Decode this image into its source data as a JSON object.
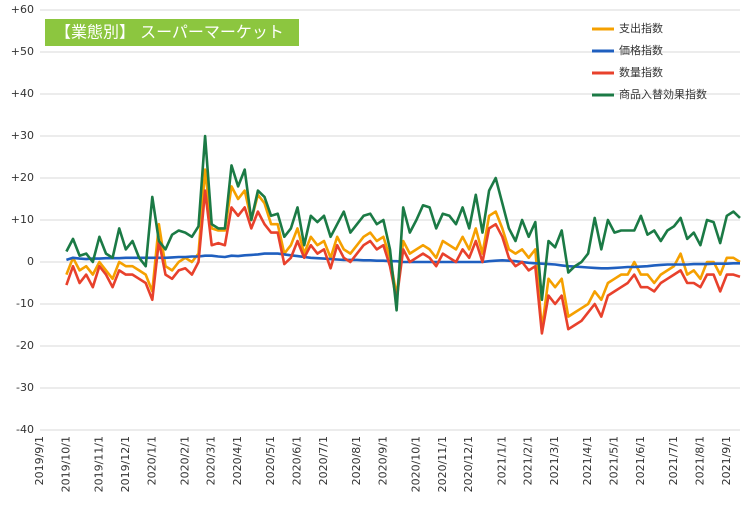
{
  "chart_data": {
    "type": "line",
    "title": "【業態別】 スーパーマーケット",
    "categories": [
      "2019/9/1",
      null,
      null,
      null,
      "2019/10/1",
      null,
      null,
      null,
      null,
      "2019/11/1",
      null,
      null,
      null,
      "2019/12/1",
      null,
      null,
      null,
      "2020/1/1",
      null,
      null,
      null,
      null,
      "2020/2/1",
      null,
      null,
      null,
      "2020/3/1",
      null,
      null,
      null,
      "2020/4/1",
      null,
      null,
      null,
      null,
      "2020/5/1",
      null,
      null,
      null,
      "2020/6/1",
      null,
      null,
      null,
      "2020/7/1",
      null,
      null,
      null,
      null,
      "2020/8/1",
      null,
      null,
      null,
      "2020/9/1",
      null,
      null,
      null,
      null,
      "2020/10/1",
      null,
      null,
      null,
      "2020/11/1",
      null,
      null,
      null,
      "2020/12/1",
      null,
      null,
      null,
      null,
      "2021/1/1",
      null,
      null,
      null,
      "2021/2/1",
      null,
      null,
      null,
      "2021/3/1",
      null,
      null,
      null,
      null,
      "2021/4/1",
      null,
      null,
      null,
      "2021/5/1",
      null,
      null,
      null,
      "2021/6/1",
      null,
      null,
      null,
      null,
      "2021/7/1",
      null,
      null,
      null,
      "2021/8/1",
      null,
      null,
      null,
      "2021/9/1",
      null,
      null
    ],
    "series": [
      {
        "name": "支出指数",
        "color": "#f5a000",
        "values": [
          null,
          null,
          null,
          null,
          -3,
          1,
          -2,
          -1,
          -3,
          0,
          -2,
          -4,
          0,
          -1,
          -1,
          -2,
          -3,
          -7,
          9,
          -1,
          -2,
          0,
          1,
          0,
          2,
          22,
          8,
          7.5,
          7.5,
          18,
          15,
          17,
          10,
          16,
          14,
          9,
          9,
          2,
          4,
          8,
          2,
          6,
          4,
          5,
          1,
          6,
          3,
          2,
          4,
          6,
          7,
          5,
          6,
          1,
          -8,
          5,
          2,
          3,
          4,
          3,
          1,
          5,
          4,
          3,
          6,
          3,
          8,
          2,
          11,
          12,
          8,
          3,
          2,
          3,
          1,
          3,
          -16,
          -4,
          -6,
          -4,
          -13,
          -12,
          -11,
          -10,
          -7,
          -9,
          -5,
          -4,
          -3,
          -3,
          0,
          -3,
          -3,
          -5,
          -3,
          -2,
          -1,
          2,
          -3,
          -2,
          -4,
          0,
          0,
          -3,
          1,
          1,
          0
        ]
      },
      {
        "name": "価格指数",
        "color": "#1f5fbf",
        "values": [
          null,
          null,
          null,
          null,
          0.5,
          1,
          0.8,
          0.7,
          0.8,
          0.8,
          0.9,
          0.9,
          0.9,
          1,
          1,
          1,
          1,
          1,
          1,
          1,
          1.1,
          1.2,
          1.2,
          1.3,
          1.3,
          1.5,
          1.5,
          1.3,
          1.2,
          1.5,
          1.4,
          1.6,
          1.7,
          1.8,
          2,
          2,
          2,
          1.8,
          1.6,
          1.4,
          1.2,
          1,
          0.9,
          0.8,
          0.7,
          0.6,
          0.5,
          0.5,
          0.5,
          0.4,
          0.4,
          0.3,
          0.3,
          0.2,
          0.2,
          0,
          0,
          0,
          0,
          0,
          0,
          0,
          0,
          0,
          0,
          0,
          0,
          0,
          0.2,
          0.3,
          0.4,
          0.3,
          0.2,
          0,
          -0.2,
          -0.3,
          -0.4,
          -0.5,
          -0.6,
          -0.8,
          -1,
          -1.1,
          -1.2,
          -1.3,
          -1.4,
          -1.5,
          -1.5,
          -1.4,
          -1.3,
          -1.2,
          -1.2,
          -1.1,
          -1,
          -0.8,
          -0.7,
          -0.6,
          -0.6,
          -0.6,
          -0.6,
          -0.5,
          -0.5,
          -0.5,
          -0.4,
          -0.4,
          -0.4,
          -0.3,
          -0.3
        ]
      },
      {
        "name": "数量指数",
        "color": "#e8412c",
        "values": [
          null,
          null,
          null,
          null,
          -5.5,
          -1,
          -5,
          -3,
          -6,
          -1,
          -3,
          -6,
          -2,
          -3,
          -3,
          -4,
          -5,
          -9,
          5,
          -3,
          -4,
          -2,
          -1.5,
          -3,
          0,
          17,
          4,
          4.5,
          4,
          13,
          11,
          13,
          8,
          12,
          9,
          7,
          7,
          -0.5,
          1,
          5,
          1,
          4,
          2,
          3,
          -1.5,
          4,
          1,
          0,
          2,
          4,
          5,
          3,
          4,
          -1,
          -9,
          3,
          0,
          1,
          2,
          1,
          -1,
          2,
          1,
          0,
          3,
          1,
          5,
          0,
          8,
          9,
          6,
          1,
          -1,
          0,
          -2,
          -1,
          -17,
          -8,
          -10,
          -8,
          -16,
          -15,
          -14,
          -12,
          -10,
          -13,
          -8,
          -7,
          -6,
          -5,
          -3,
          -6,
          -6,
          -7,
          -5,
          -4,
          -3,
          -2,
          -5,
          -5,
          -6,
          -3,
          -3,
          -7,
          -3,
          -3,
          -3.5
        ]
      },
      {
        "name": "商品入替効果指数",
        "color": "#1b7a45",
        "values": [
          null,
          null,
          null,
          null,
          2.5,
          5.5,
          1.5,
          2,
          0,
          6,
          2,
          1,
          8,
          3,
          5,
          1,
          -1,
          15.5,
          5,
          3,
          6.5,
          7.5,
          7,
          6,
          8.5,
          30,
          9,
          8,
          8,
          23,
          18,
          22,
          10,
          17,
          15.5,
          11,
          11.5,
          6,
          8,
          13,
          4,
          11,
          9.5,
          11,
          6,
          9,
          12,
          7,
          9,
          11,
          11.5,
          9,
          10,
          3,
          -11.5,
          13,
          7,
          10,
          13.5,
          13,
          8,
          11.5,
          11,
          9,
          13,
          8,
          16,
          7,
          17,
          20,
          14,
          8,
          5,
          10,
          6,
          9.5,
          -9,
          5,
          3.5,
          7.5,
          -2.5,
          -1,
          0,
          2,
          10.5,
          3,
          10,
          7,
          7.5,
          7.5,
          7.5,
          11,
          6.5,
          7.5,
          5,
          7.5,
          8.5,
          10.5,
          5.5,
          7,
          4,
          10,
          9.5,
          4.5,
          11,
          12,
          10.5
        ]
      }
    ],
    "ylim": [
      -40,
      60
    ],
    "yticks": [
      {
        "value": 60,
        "label": "+60"
      },
      {
        "value": 50,
        "label": "+50"
      },
      {
        "value": 40,
        "label": "+40"
      },
      {
        "value": 30,
        "label": "+30"
      },
      {
        "value": 20,
        "label": "+20"
      },
      {
        "value": 10,
        "label": "+10"
      },
      0,
      -10,
      -20,
      -30,
      -40
    ],
    "grid": true,
    "legend": "upper right"
  }
}
